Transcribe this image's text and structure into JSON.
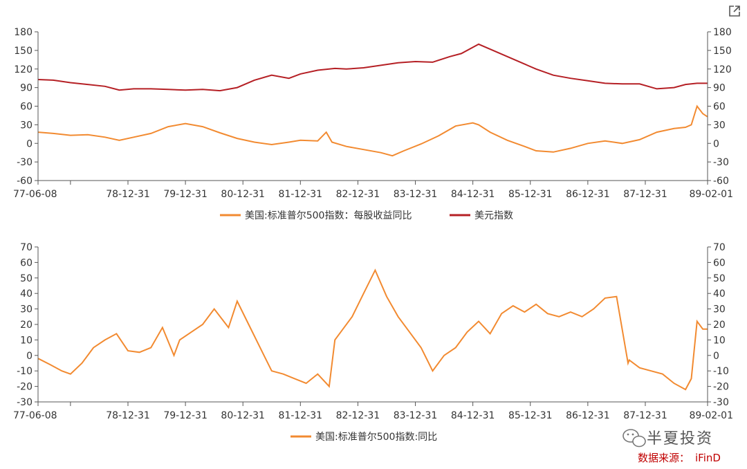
{
  "toolbar": {
    "expand_icon": "external-link-icon"
  },
  "colors": {
    "eps": "#f28a30",
    "dxy": "#b51f24",
    "spx": "#f28a30",
    "axis": "#555555",
    "source": "#c00000"
  },
  "watermark": {
    "text": "半夏投资",
    "icon": "wechat-icon"
  },
  "source": {
    "label": "数据来源：",
    "name": "iFinD"
  },
  "chart_data": [
    {
      "type": "line",
      "x_ticks": [
        "77-06-08",
        "78-12-31",
        "79-12-31",
        "80-12-31",
        "81-12-31",
        "82-12-31",
        "83-12-31",
        "84-12-31",
        "85-12-31",
        "86-12-31",
        "87-12-31",
        "89-02-01"
      ],
      "x_range": [
        "1977-06-08",
        "1989-02-01"
      ],
      "ylim": [
        -60,
        180
      ],
      "y_ticks": [
        -60,
        -30,
        0,
        30,
        60,
        90,
        120,
        150,
        180
      ],
      "series": [
        {
          "name": "美国:标准普尔500指数：每股收益同比",
          "axis": "left",
          "x": [
            1977.44,
            1977.7,
            1978.0,
            1978.3,
            1978.6,
            1978.85,
            1979.1,
            1979.4,
            1979.7,
            1980.0,
            1980.3,
            1980.6,
            1980.9,
            1981.2,
            1981.5,
            1981.8,
            1982.0,
            1982.3,
            1982.45,
            1982.55,
            1982.8,
            1983.1,
            1983.4,
            1983.6,
            1983.8,
            1984.1,
            1984.4,
            1984.7,
            1985.0,
            1985.1,
            1985.3,
            1985.6,
            1985.9,
            1986.1,
            1986.4,
            1986.7,
            1987.0,
            1987.3,
            1987.6,
            1987.9,
            1988.2,
            1988.5,
            1988.7,
            1988.8,
            1988.9,
            1989.0,
            1989.08
          ],
          "y": [
            18,
            16,
            13,
            14,
            10,
            5,
            10,
            16,
            27,
            32,
            27,
            17,
            8,
            2,
            -2,
            2,
            5,
            4,
            18,
            2,
            -5,
            -10,
            -15,
            -20,
            -12,
            -1,
            12,
            28,
            33,
            30,
            18,
            5,
            -5,
            -12,
            -14,
            -8,
            0,
            4,
            0,
            6,
            18,
            24,
            26,
            30,
            60,
            48,
            43
          ]
        },
        {
          "name": "美元指数",
          "axis": "right",
          "x": [
            1977.44,
            1977.7,
            1978.0,
            1978.3,
            1978.6,
            1978.85,
            1979.1,
            1979.4,
            1979.7,
            1980.0,
            1980.3,
            1980.6,
            1980.9,
            1981.2,
            1981.5,
            1981.8,
            1982.0,
            1982.3,
            1982.6,
            1982.8,
            1983.1,
            1983.4,
            1983.7,
            1984.0,
            1984.3,
            1984.6,
            1984.8,
            1985.1,
            1985.3,
            1985.6,
            1985.9,
            1986.1,
            1986.4,
            1986.7,
            1987.0,
            1987.3,
            1987.6,
            1987.9,
            1988.2,
            1988.5,
            1988.7,
            1988.9,
            1989.08
          ],
          "y": [
            103,
            102,
            98,
            95,
            92,
            86,
            88,
            88,
            87,
            86,
            87,
            85,
            90,
            102,
            110,
            105,
            112,
            118,
            121,
            120,
            122,
            126,
            130,
            132,
            131,
            140,
            145,
            160,
            152,
            140,
            128,
            120,
            110,
            105,
            101,
            97,
            96,
            96,
            88,
            90,
            95,
            97,
            97
          ]
        }
      ]
    },
    {
      "type": "line",
      "x_ticks": [
        "77-06-08",
        "78-12-31",
        "79-12-31",
        "80-12-31",
        "81-12-31",
        "82-12-31",
        "83-12-31",
        "84-12-31",
        "85-12-31",
        "86-12-31",
        "87-12-31",
        "89-02-01"
      ],
      "x_range": [
        "1977-06-08",
        "1989-02-01"
      ],
      "ylim": [
        -30,
        70
      ],
      "y_ticks": [
        -30,
        -20,
        -10,
        0,
        10,
        20,
        30,
        40,
        50,
        60,
        70
      ],
      "series": [
        {
          "name": "美国:标准普尔500指数:同比",
          "axis": "left",
          "x": [
            1977.44,
            1977.65,
            1977.85,
            1978.0,
            1978.2,
            1978.4,
            1978.6,
            1978.8,
            1979.0,
            1979.2,
            1979.4,
            1979.6,
            1979.8,
            1979.9,
            1980.1,
            1980.3,
            1980.5,
            1980.75,
            1980.9,
            1981.1,
            1981.3,
            1981.5,
            1981.7,
            1981.9,
            1982.1,
            1982.3,
            1982.5,
            1982.6,
            1982.7,
            1982.9,
            1983.1,
            1983.3,
            1983.5,
            1983.7,
            1983.9,
            1984.1,
            1984.3,
            1984.5,
            1984.7,
            1984.9,
            1985.1,
            1985.3,
            1985.5,
            1985.7,
            1985.9,
            1986.1,
            1986.3,
            1986.5,
            1986.7,
            1986.9,
            1987.1,
            1987.3,
            1987.5,
            1987.7,
            1987.72,
            1987.9,
            1988.1,
            1988.3,
            1988.5,
            1988.7,
            1988.8,
            1988.9,
            1989.0,
            1989.08
          ],
          "y": [
            -2,
            -6,
            -10,
            -12,
            -5,
            5,
            10,
            14,
            3,
            2,
            5,
            18,
            0,
            10,
            15,
            20,
            30,
            18,
            35,
            20,
            5,
            -10,
            -12,
            -15,
            -18,
            -12,
            -20,
            10,
            15,
            25,
            40,
            55,
            38,
            25,
            15,
            5,
            -10,
            0,
            5,
            15,
            22,
            14,
            27,
            32,
            28,
            33,
            27,
            25,
            28,
            25,
            30,
            37,
            38,
            -5,
            -3,
            -8,
            -10,
            -12,
            -18,
            -22,
            -15,
            22,
            17,
            17
          ]
        }
      ]
    }
  ]
}
